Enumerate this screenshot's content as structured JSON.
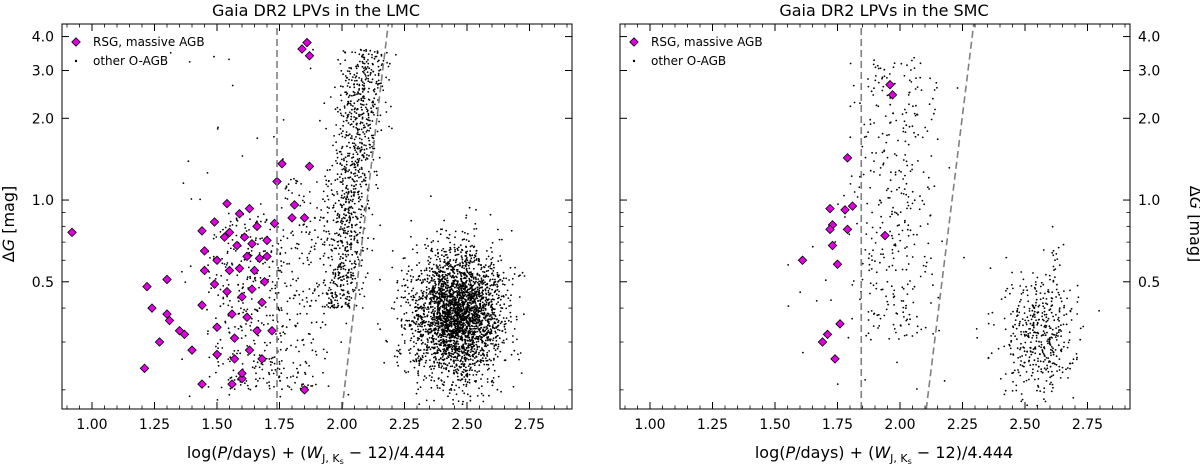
{
  "chart_data": [
    {
      "type": "scatter",
      "title": "Gaia DR2 LPVs in the LMC",
      "xlabel": "log(P/days) + (W_J,Ks − 12)/4.444",
      "ylabel": "ΔG [mag]",
      "xlim": [
        0.88,
        2.92
      ],
      "ylim": [
        0.17,
        4.45
      ],
      "yscale": "log",
      "xticks": [
        "1.00",
        "1.25",
        "1.50",
        "1.75",
        "2.00",
        "2.25",
        "2.50",
        "2.75"
      ],
      "yticks": [
        "0.5",
        "1.0",
        "2.0",
        "3.0",
        "4.0"
      ],
      "ytick_side": "left",
      "legend_position": "top-left",
      "grid": false,
      "reference_lines": [
        {
          "style": "dashed",
          "color": "#808080",
          "x1": 1.74,
          "y1": 0.17,
          "x2": 1.74,
          "y2": 4.45
        },
        {
          "style": "dashed",
          "color": "#808080",
          "x1": 2.0,
          "y1": 0.17,
          "x2": 2.185,
          "y2": 4.45
        }
      ],
      "series": [
        {
          "name": "RSG, massive AGB",
          "marker": "diamond",
          "color": "#e000e0",
          "points": [
            [
              0.92,
              0.76
            ],
            [
              1.22,
              0.48
            ],
            [
              1.24,
              0.4
            ],
            [
              1.27,
              0.3
            ],
            [
              1.21,
              0.24
            ],
            [
              1.3,
              0.51
            ],
            [
              1.3,
              0.38
            ],
            [
              1.31,
              0.36
            ],
            [
              1.35,
              0.33
            ],
            [
              1.37,
              0.32
            ],
            [
              1.4,
              0.28
            ],
            [
              1.44,
              0.21
            ],
            [
              1.44,
              0.77
            ],
            [
              1.45,
              0.65
            ],
            [
              1.45,
              0.55
            ],
            [
              1.44,
              0.41
            ],
            [
              1.49,
              0.49
            ],
            [
              1.5,
              0.6
            ],
            [
              1.5,
              0.34
            ],
            [
              1.5,
              0.27
            ],
            [
              1.49,
              0.83
            ],
            [
              1.54,
              0.97
            ],
            [
              1.53,
              0.73
            ],
            [
              1.54,
              0.46
            ],
            [
              1.55,
              0.55
            ],
            [
              1.56,
              0.38
            ],
            [
              1.57,
              0.31
            ],
            [
              1.57,
              0.26
            ],
            [
              1.58,
              0.68
            ],
            [
              1.59,
              0.56
            ],
            [
              1.59,
              0.89
            ],
            [
              1.6,
              0.44
            ],
            [
              1.6,
              0.22
            ],
            [
              1.61,
              0.73
            ],
            [
              1.62,
              0.62
            ],
            [
              1.62,
              0.37
            ],
            [
              1.63,
              0.28
            ],
            [
              1.63,
              0.93
            ],
            [
              1.64,
              0.69
            ],
            [
              1.64,
              0.47
            ],
            [
              1.65,
              0.55
            ],
            [
              1.66,
              0.8
            ],
            [
              1.66,
              0.33
            ],
            [
              1.67,
              0.61
            ],
            [
              1.68,
              0.42
            ],
            [
              1.68,
              0.26
            ],
            [
              1.69,
              0.5
            ],
            [
              1.7,
              0.62
            ],
            [
              1.7,
              0.71
            ],
            [
              1.72,
              0.33
            ],
            [
              1.56,
              0.21
            ],
            [
              1.6,
              0.23
            ],
            [
              1.55,
              0.76
            ],
            [
              1.76,
              1.36
            ],
            [
              1.74,
              1.17
            ],
            [
              1.73,
              0.82
            ],
            [
              1.8,
              0.86
            ],
            [
              1.81,
              0.96
            ],
            [
              1.85,
              0.86
            ],
            [
              1.87,
              1.33
            ],
            [
              1.84,
              3.6
            ],
            [
              1.86,
              3.8
            ],
            [
              1.87,
              3.4
            ],
            [
              1.85,
              0.2
            ]
          ]
        },
        {
          "name": "other O-AGB",
          "marker": "dot",
          "color": "#000000",
          "clusters": [
            {
              "count": 320,
              "xmin": 1.46,
              "xmax": 1.76,
              "ymin": 0.2,
              "ymax": 0.9
            },
            {
              "count": 200,
              "xmin": 1.74,
              "xmax": 1.95,
              "ymin": 0.2,
              "ymax": 1.2
            },
            {
              "count": 950,
              "x_center": 1.985,
              "x_spread": 0.045,
              "x_slope_per_dex": 0.12,
              "ymin": 0.4,
              "ymax": 3.6
            },
            {
              "count": 3000,
              "x_center": 2.46,
              "x_spread": 0.09,
              "y_center": 0.38,
              "y_spread_dex": 0.12
            },
            {
              "count": 60,
              "xmin": 1.3,
              "xmax": 2.1,
              "ymin": 0.18,
              "ymax": 4.0
            }
          ]
        }
      ]
    },
    {
      "type": "scatter",
      "title": "Gaia DR2 LPVs in the SMC",
      "xlabel": "log(P/days) + (W_J,Ks − 12)/4.444",
      "ylabel": "ΔG [mag]",
      "xlim": [
        0.88,
        2.92
      ],
      "ylim": [
        0.17,
        4.45
      ],
      "yscale": "log",
      "xticks": [
        "1.00",
        "1.25",
        "1.50",
        "1.75",
        "2.00",
        "2.25",
        "2.50",
        "2.75"
      ],
      "yticks": [
        "0.5",
        "1.0",
        "2.0",
        "3.0",
        "4.0"
      ],
      "ytick_side": "right",
      "legend_position": "top-left",
      "grid": false,
      "reference_lines": [
        {
          "style": "dashed",
          "color": "#808080",
          "x1": 1.845,
          "y1": 0.17,
          "x2": 1.845,
          "y2": 4.45
        },
        {
          "style": "dashed",
          "color": "#808080",
          "x1": 2.105,
          "y1": 0.17,
          "x2": 2.295,
          "y2": 4.45
        }
      ],
      "series": [
        {
          "name": "RSG, massive AGB",
          "marker": "diamond",
          "color": "#e000e0",
          "points": [
            [
              1.61,
              0.6
            ],
            [
              1.72,
              0.93
            ],
            [
              1.73,
              0.81
            ],
            [
              1.72,
              0.78
            ],
            [
              1.73,
              0.68
            ],
            [
              1.75,
              0.58
            ],
            [
              1.71,
              0.32
            ],
            [
              1.69,
              0.3
            ],
            [
              1.76,
              0.35
            ],
            [
              1.74,
              0.26
            ],
            [
              1.78,
              0.92
            ],
            [
              1.79,
              0.78
            ],
            [
              1.79,
              1.43
            ],
            [
              1.81,
              0.95
            ],
            [
              1.94,
              0.74
            ],
            [
              1.97,
              2.44
            ],
            [
              1.96,
              2.66
            ]
          ]
        },
        {
          "name": "other O-AGB",
          "marker": "dot",
          "color": "#000000",
          "clusters": [
            {
              "count": 350,
              "x_center": 1.98,
              "x_spread": 0.09,
              "ymin": 0.3,
              "ymax": 3.4
            },
            {
              "count": 450,
              "x_center": 2.56,
              "x_spread": 0.07,
              "y_center": 0.32,
              "y_spread_dex": 0.12
            },
            {
              "count": 40,
              "xmin": 1.55,
              "xmax": 2.85,
              "ymin": 0.2,
              "ymax": 0.7
            }
          ]
        }
      ]
    }
  ]
}
